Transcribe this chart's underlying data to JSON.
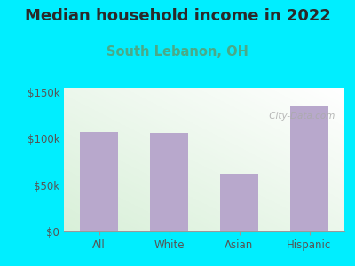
{
  "categories": [
    "All",
    "White",
    "Asian",
    "Hispanic"
  ],
  "values": [
    107000,
    106000,
    62000,
    135000
  ],
  "bar_color": "#b8a8cc",
  "title": "Median household income in 2022",
  "subtitle": "South Lebanon, OH",
  "subtitle_color": "#4aaa88",
  "title_color": "#2a2a2a",
  "background_color": "#00eeff",
  "ylabel_ticks": [
    0,
    50000,
    100000,
    150000
  ],
  "ylabel_labels": [
    "$0",
    "$50k",
    "$100k",
    "$150k"
  ],
  "ylim": [
    0,
    155000
  ],
  "title_fontsize": 13,
  "subtitle_fontsize": 10.5,
  "tick_fontsize": 8.5,
  "watermark": " City-Data.com"
}
